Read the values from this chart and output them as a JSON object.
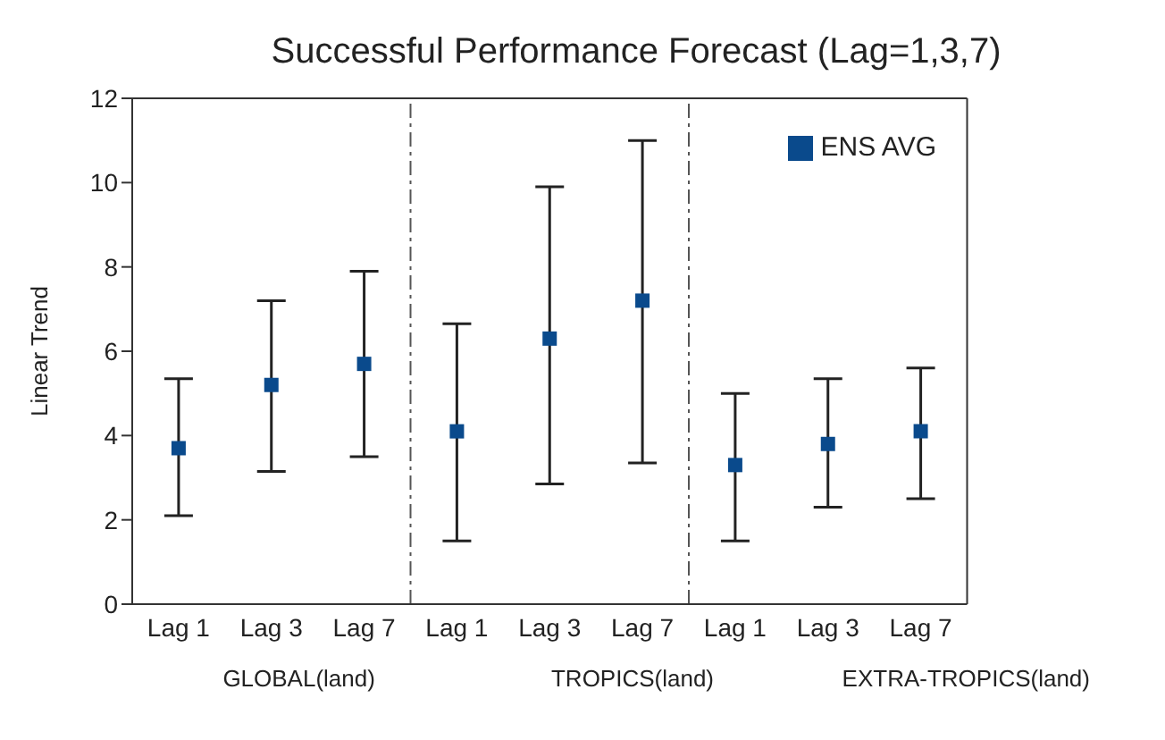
{
  "chart_data": {
    "type": "scatter",
    "title": "Successful Performance Forecast (Lag=1,3,7)",
    "ylabel": "Linear Trend",
    "categories": [
      "Lag 1",
      "Lag 3",
      "Lag 7",
      "Lag 1",
      "Lag 3",
      "Lag 7",
      "Lag 1",
      "Lag 3",
      "Lag 7"
    ],
    "series": [
      {
        "name": "ENS AVG",
        "color": "#0a4a8c",
        "values": [
          3.7,
          5.2,
          5.7,
          4.1,
          6.3,
          7.2,
          3.3,
          3.8,
          4.1
        ],
        "errors": [
          [
            2.1,
            5.35
          ],
          [
            3.15,
            7.2
          ],
          [
            3.5,
            7.9
          ],
          [
            1.5,
            6.65
          ],
          [
            2.85,
            9.9
          ],
          [
            3.35,
            11.0
          ],
          [
            1.5,
            5.0
          ],
          [
            2.3,
            5.35
          ],
          [
            2.5,
            5.6
          ]
        ]
      }
    ],
    "ylim": [
      0,
      12
    ],
    "yticks": [
      0,
      2,
      4,
      6,
      8,
      10,
      12
    ],
    "marker": "square",
    "grid": false,
    "legend": "top right",
    "annotations": [
      "GLOBAL(land)",
      "TROPICS(land)",
      "EXTRA-TROPICS(land)"
    ]
  }
}
